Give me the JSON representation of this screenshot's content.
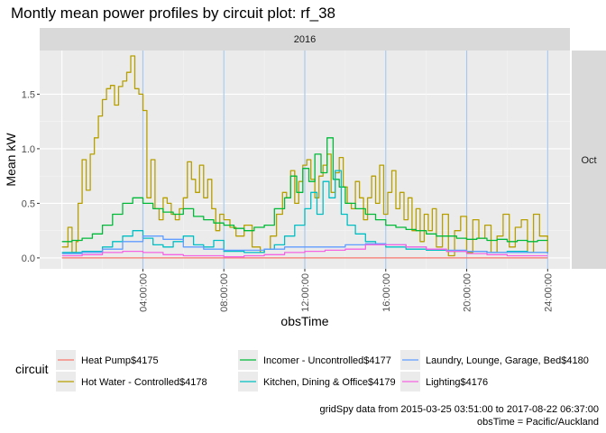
{
  "chart_data": {
    "type": "line",
    "title": "Montly mean power profiles by circuit plot: rf_38",
    "facet_col": "2016",
    "facet_row": "Oct",
    "xlabel": "obsTime",
    "ylabel": "Mean kW",
    "x_range_hours": [
      0,
      24
    ],
    "ylim": [
      -0.1,
      1.9
    ],
    "y_ticks": [
      0.0,
      0.5,
      1.0,
      1.5
    ],
    "y_tick_labels": [
      "0.0",
      "0.5",
      "1.0",
      "1.5"
    ],
    "x_ticks_hours": [
      4,
      8,
      12,
      16,
      20,
      24
    ],
    "x_tick_labels": [
      "04:00:00",
      "08:00:00",
      "12:00:00",
      "16:00:00",
      "20:00:00",
      "24:00:00"
    ],
    "vlines_hours": [
      4,
      8,
      12,
      16,
      20,
      24
    ],
    "vline_color": "#a6c8ef",
    "grid": true,
    "legend_title": "circuit",
    "legend_position": "bottom",
    "series": [
      {
        "name": "Heat Pump$4175",
        "color": "#F8766D",
        "x": [
          0,
          24
        ],
        "y": [
          0.0,
          0.0
        ]
      },
      {
        "name": "Hot Water - Controlled$4178",
        "color": "#B79F00",
        "x": [
          0,
          0.3,
          0.5,
          0.7,
          0.8,
          1.0,
          1.2,
          1.4,
          1.6,
          1.8,
          2.0,
          2.2,
          2.4,
          2.6,
          2.8,
          3.0,
          3.2,
          3.4,
          3.6,
          3.8,
          4.0,
          4.2,
          4.4,
          4.6,
          4.8,
          5.0,
          5.2,
          5.4,
          5.6,
          5.8,
          6.0,
          6.2,
          6.4,
          6.6,
          6.8,
          7.0,
          7.2,
          7.4,
          7.6,
          7.8,
          8.0,
          8.3,
          8.6,
          9.0,
          9.4,
          9.8,
          10.0,
          10.3,
          10.6,
          10.9,
          11.1,
          11.3,
          11.5,
          11.7,
          11.9,
          12.1,
          12.3,
          12.5,
          12.7,
          12.9,
          13.1,
          13.3,
          13.5,
          13.7,
          13.9,
          14.1,
          14.3,
          14.5,
          14.7,
          14.9,
          15.1,
          15.3,
          15.5,
          15.7,
          15.9,
          16.1,
          16.3,
          16.5,
          16.7,
          16.9,
          17.1,
          17.3,
          17.5,
          17.7,
          17.9,
          18.1,
          18.3,
          18.5,
          18.8,
          19.1,
          19.4,
          19.7,
          20.0,
          20.3,
          20.6,
          20.9,
          21.2,
          21.5,
          21.8,
          22.1,
          22.4,
          22.7,
          23.0,
          23.3,
          23.6,
          24.0
        ],
        "y": [
          0.1,
          0.28,
          0.05,
          0.15,
          0.5,
          0.9,
          0.62,
          0.95,
          1.1,
          1.3,
          1.45,
          1.55,
          1.58,
          1.4,
          1.57,
          1.62,
          1.7,
          1.85,
          1.55,
          1.5,
          1.35,
          0.55,
          0.9,
          0.45,
          0.35,
          0.55,
          0.5,
          0.4,
          0.35,
          0.45,
          0.55,
          0.88,
          0.72,
          0.6,
          0.85,
          0.55,
          0.72,
          0.45,
          0.25,
          0.4,
          0.35,
          0.28,
          0.2,
          0.3,
          0.1,
          0.05,
          0.08,
          0.2,
          0.4,
          0.6,
          0.55,
          0.8,
          0.5,
          0.7,
          0.85,
          0.9,
          0.72,
          0.55,
          0.75,
          0.85,
          0.95,
          0.6,
          0.78,
          0.92,
          0.65,
          0.5,
          0.45,
          0.7,
          0.55,
          0.35,
          0.55,
          0.75,
          0.5,
          0.85,
          0.4,
          0.6,
          0.8,
          0.45,
          0.6,
          0.35,
          0.55,
          0.25,
          0.45,
          0.15,
          0.4,
          0.25,
          0.45,
          0.1,
          0.4,
          0.02,
          0.25,
          0.38,
          0.05,
          0.35,
          0.18,
          0.3,
          0.05,
          0.2,
          0.4,
          0.1,
          0.28,
          0.35,
          0.05,
          0.4,
          0.2,
          0.05
        ]
      },
      {
        "name": "Incomer - Uncontrolled$4177",
        "color": "#00BA38",
        "x": [
          0,
          0.5,
          1.0,
          1.5,
          2.0,
          2.5,
          3.0,
          3.5,
          4.0,
          4.5,
          5.0,
          5.5,
          6.0,
          6.5,
          7.0,
          7.5,
          8.0,
          8.5,
          9.0,
          9.5,
          10.0,
          10.5,
          11.0,
          11.3,
          11.6,
          11.9,
          12.2,
          12.5,
          12.8,
          13.1,
          13.4,
          13.7,
          14.0,
          14.5,
          15.0,
          15.5,
          16.0,
          16.5,
          17.0,
          17.5,
          18.0,
          18.5,
          19.0,
          19.5,
          20.0,
          20.5,
          21.0,
          21.5,
          22.0,
          22.5,
          23.0,
          23.5,
          24.0
        ],
        "y": [
          0.15,
          0.16,
          0.18,
          0.22,
          0.3,
          0.4,
          0.5,
          0.55,
          0.5,
          0.45,
          0.42,
          0.4,
          0.45,
          0.38,
          0.35,
          0.32,
          0.3,
          0.27,
          0.25,
          0.28,
          0.3,
          0.45,
          0.55,
          0.75,
          0.6,
          0.82,
          0.7,
          0.95,
          0.78,
          1.1,
          0.72,
          0.65,
          0.5,
          0.45,
          0.4,
          0.35,
          0.3,
          0.28,
          0.26,
          0.25,
          0.22,
          0.2,
          0.2,
          0.18,
          0.17,
          0.18,
          0.16,
          0.17,
          0.15,
          0.16,
          0.15,
          0.16,
          0.16
        ]
      },
      {
        "name": "Kitchen, Dining & Office$4179",
        "color": "#00BFC4",
        "x": [
          0,
          1.0,
          2.0,
          2.5,
          3.0,
          3.5,
          4.0,
          4.5,
          5.0,
          5.5,
          6.0,
          6.5,
          7.0,
          7.5,
          8.0,
          9.0,
          10.0,
          10.5,
          11.0,
          11.5,
          12.0,
          12.3,
          12.6,
          12.9,
          13.2,
          13.5,
          13.8,
          14.1,
          14.5,
          15.0,
          15.5,
          16.0,
          17.0,
          18.0,
          19.0,
          20.0,
          21.0,
          22.0,
          23.0,
          24.0
        ],
        "y": [
          0.05,
          0.06,
          0.1,
          0.15,
          0.2,
          0.25,
          0.18,
          0.12,
          0.1,
          0.15,
          0.2,
          0.12,
          0.1,
          0.16,
          0.06,
          0.05,
          0.08,
          0.12,
          0.2,
          0.3,
          0.45,
          0.6,
          0.4,
          0.7,
          0.55,
          0.8,
          0.4,
          0.3,
          0.22,
          0.15,
          0.12,
          0.1,
          0.08,
          0.07,
          0.06,
          0.06,
          0.05,
          0.06,
          0.05,
          0.05
        ]
      },
      {
        "name": "Laundry, Lounge, Garage, Bed$4180",
        "color": "#619CFF",
        "x": [
          0,
          1.0,
          2.0,
          3.0,
          4.0,
          5.0,
          6.0,
          7.0,
          8.0,
          9.0,
          10.0,
          11.0,
          12.0,
          13.0,
          14.0,
          15.0,
          16.0,
          17.0,
          18.0,
          19.0,
          20.0,
          21.0,
          22.0,
          23.0,
          24.0
        ],
        "y": [
          0.04,
          0.05,
          0.08,
          0.15,
          0.2,
          0.17,
          0.1,
          0.08,
          0.07,
          0.07,
          0.08,
          0.1,
          0.1,
          0.1,
          0.12,
          0.13,
          0.12,
          0.1,
          0.08,
          0.07,
          0.06,
          0.05,
          0.05,
          0.05,
          0.04
        ]
      },
      {
        "name": "Lighting$4176",
        "color": "#F564E3",
        "x": [
          0,
          1.0,
          2.0,
          3.0,
          4.0,
          5.0,
          6.0,
          7.0,
          8.0,
          9.0,
          10.0,
          11.0,
          12.0,
          13.0,
          14.0,
          15.0,
          16.0,
          17.0,
          18.0,
          19.0,
          20.0,
          21.0,
          22.0,
          23.0,
          24.0
        ],
        "y": [
          0.02,
          0.03,
          0.05,
          0.06,
          0.05,
          0.03,
          0.02,
          0.02,
          0.01,
          0.02,
          0.03,
          0.05,
          0.06,
          0.07,
          0.08,
          0.12,
          0.12,
          0.1,
          0.08,
          0.06,
          0.04,
          0.03,
          0.02,
          0.02,
          0.02
        ]
      }
    ],
    "caption_line1": "gridSpy data from 2015-03-25 03:51:00 to 2017-08-22 06:37:00",
    "caption_line2": "obsTime = Pacific/Auckland"
  }
}
